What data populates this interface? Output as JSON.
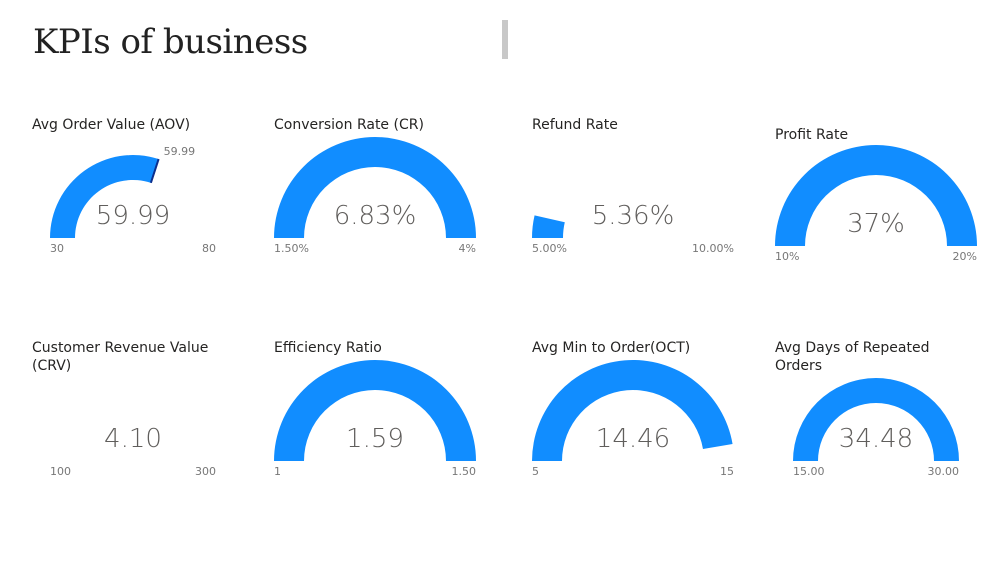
{
  "header": {
    "title": "KPIs of business"
  },
  "colors": {
    "gauge_fill": "#118DFF",
    "target_marker": "#0B2E8C",
    "text": "#605E5C"
  },
  "gauges": [
    {
      "title": "Avg Order Value (AOV)",
      "value": 59.99,
      "value_label": "59.99",
      "min": 30,
      "max": 80,
      "min_label": "30",
      "max_label": "80",
      "target": 59.99,
      "target_label": "59.99"
    },
    {
      "title": "Conversion Rate (CR)",
      "value": 6.83,
      "value_label": "6.83%",
      "min": 1.5,
      "max": 4,
      "min_label": "1.50%",
      "max_label": "4%"
    },
    {
      "title": "Refund Rate",
      "value": 5.36,
      "value_label": "5.36%",
      "min": 5,
      "max": 10,
      "min_label": "5.00%",
      "max_label": "10.00%"
    },
    {
      "title": "Profit Rate",
      "value": 37,
      "value_label": "37%",
      "min": 10,
      "max": 20,
      "min_label": "10%",
      "max_label": "20%"
    },
    {
      "title": "Customer Revenue Value (CRV)",
      "value": 4.1,
      "value_label": "4.10",
      "min": 100,
      "max": 300,
      "min_label": "100",
      "max_label": "300"
    },
    {
      "title": "Efficiency Ratio",
      "value": 1.59,
      "value_label": "1.59",
      "min": 1,
      "max": 1.5,
      "min_label": "1",
      "max_label": "1.50"
    },
    {
      "title": "Avg Min to Order(OCT)",
      "value": 14.46,
      "value_label": "14.46",
      "min": 5,
      "max": 15,
      "min_label": "5",
      "max_label": "15"
    },
    {
      "title": "Avg Days of Repeated Orders",
      "value": 34.48,
      "value_label": "34.48",
      "min": 15,
      "max": 30,
      "min_label": "15.00",
      "max_label": "30.00"
    }
  ]
}
